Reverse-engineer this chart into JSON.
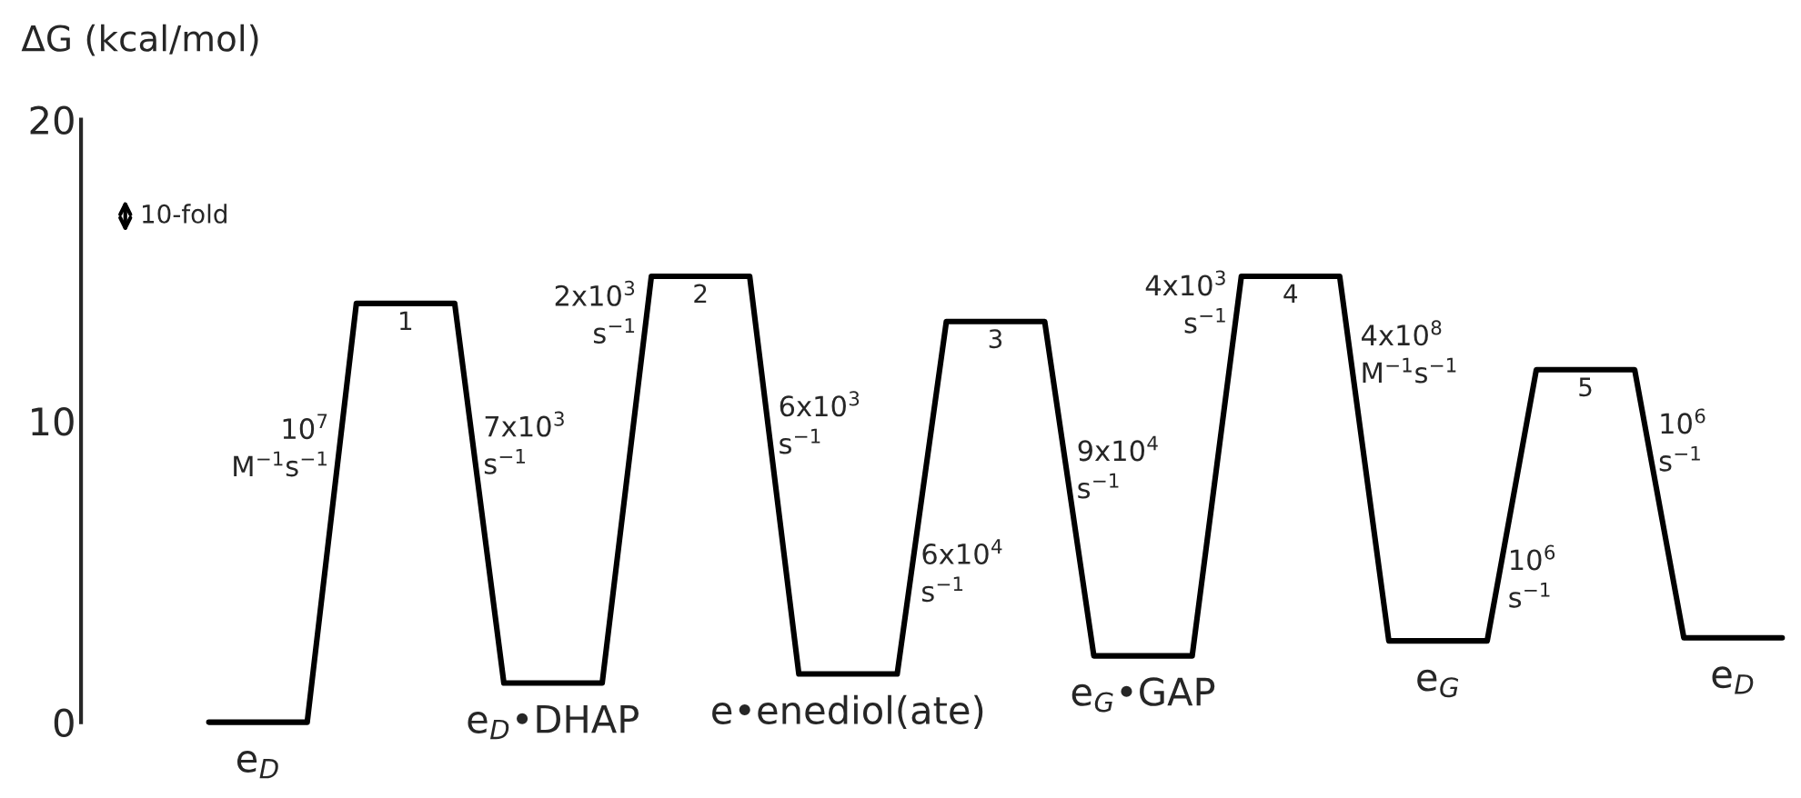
{
  "chart_data": {
    "type": "line",
    "ylabel": "ΔG (kcal/mol)",
    "categories": [
      null,
      "e$_{D}$",
      null,
      null,
      "1",
      null,
      null,
      "e$_{D}$•DHAP",
      null,
      null,
      "2",
      null,
      null,
      "e•enediol(ate)",
      null,
      null,
      "3",
      null,
      null,
      "e$_{G}$•GAP",
      null,
      null,
      "4",
      null,
      null,
      "e$_{G}$",
      null,
      null,
      "5",
      null,
      null,
      "e$_{D}$",
      null
    ],
    "series": [
      {
        "color": "#000000",
        "values": [
          0,
          0,
          0,
          13.9,
          13.9,
          13.9,
          1.3,
          1.3,
          1.3,
          14.8,
          14.8,
          14.8,
          1.6,
          1.6,
          1.6,
          13.3,
          13.3,
          13.3,
          2.2,
          2.2,
          2.2,
          14.8,
          14.8,
          14.8,
          2.7,
          2.7,
          2.7,
          11.7,
          11.7,
          11.7,
          2.8,
          2.8,
          2.8
        ]
      }
    ],
    "ylim": [
      0,
      20
    ],
    "yticks": [
      0,
      10,
      20
    ],
    "tick_labels": "y",
    "grid": false,
    "legend": false,
    "marker": "none",
    "line_style": "solid",
    "annotations": [
      "10-fold",
      "10$^{7}$\nM$^{−1}$s$^{−1}$",
      "7x10$^{3}$\ns$^{−1}$",
      "2x10$^{3}$\ns$^{−1}$",
      "6x10$^{3}$\ns$^{−1}$",
      "6x10$^{4}$\ns$^{−1}$",
      "9x10$^{4}$\ns$^{−1}$",
      "4x10$^{3}$\ns$^{−1}$",
      "4x10$^{8}$\nM$^{−1}$s$^{−1}$",
      "10$^{6}$\ns$^{−1}$",
      "10$^{6}$\ns$^{−1}$"
    ]
  }
}
